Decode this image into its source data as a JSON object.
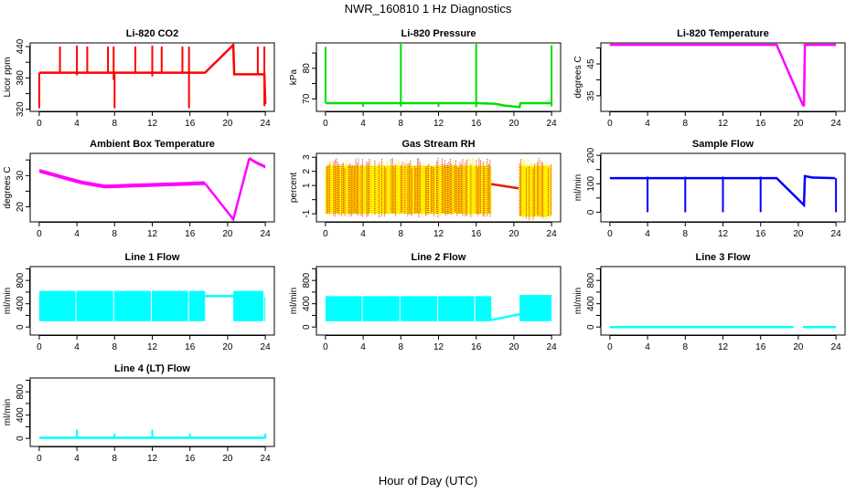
{
  "title": "NWR_160810  1 Hz Diagnostics",
  "xlabel": "Hour of Day (UTC)",
  "chart_data": [
    {
      "type": "line",
      "title": "Li-820 CO2",
      "ylabel": "Licor ppm",
      "color": "#ff0000",
      "xlim": [
        -0.96,
        24.96
      ],
      "ylim": [
        316,
        447
      ],
      "xticks": [
        0,
        4,
        8,
        12,
        16,
        20,
        24
      ],
      "yticks": [
        320,
        350,
        380,
        410,
        440
      ],
      "ytick_labels": [
        "320",
        "",
        "380",
        "",
        "440"
      ],
      "lines": [
        [
          [
            0,
            390
          ],
          [
            17.6,
            390
          ],
          [
            20.6,
            443
          ],
          [
            20.7,
            387
          ],
          [
            23.9,
            387
          ],
          [
            24,
            330
          ]
        ]
      ],
      "spikes": [
        [
          0,
          322,
          390
        ],
        [
          2.2,
          390,
          440
        ],
        [
          4,
          385,
          442
        ],
        [
          5.1,
          390,
          440
        ],
        [
          7.3,
          390,
          440
        ],
        [
          7.9,
          376,
          440
        ],
        [
          8,
          322,
          390
        ],
        [
          10.2,
          390,
          440
        ],
        [
          12,
          383,
          442
        ],
        [
          13,
          390,
          440
        ],
        [
          15.2,
          390,
          440
        ],
        [
          15.9,
          322,
          440
        ],
        [
          23.2,
          387,
          440
        ],
        [
          23.9,
          326,
          440
        ]
      ],
      "bands": []
    },
    {
      "type": "line",
      "title": "Li-820 Pressure",
      "ylabel": "kPa",
      "color": "#00dd00",
      "xlim": [
        -0.96,
        24.96
      ],
      "ylim": [
        65.9,
        88.3
      ],
      "xticks": [
        0,
        4,
        8,
        12,
        16,
        20,
        24
      ],
      "yticks": [
        70,
        75,
        80,
        85
      ],
      "ytick_labels": [
        "70",
        "",
        "80",
        ""
      ],
      "lines": [
        [
          [
            0,
            68.6
          ],
          [
            16,
            68.6
          ],
          [
            18,
            68.4
          ],
          [
            19,
            67.8
          ],
          [
            20.6,
            67.3
          ],
          [
            20.7,
            68.6
          ],
          [
            24,
            68.6
          ]
        ]
      ],
      "spikes": [
        [
          0,
          68.6,
          87
        ],
        [
          8,
          67.5,
          88.3
        ],
        [
          16,
          67.3,
          88.3
        ],
        [
          24,
          67.5,
          87.5
        ],
        [
          4,
          67.4,
          68.6
        ],
        [
          12,
          67.4,
          68.6
        ]
      ],
      "bands": []
    },
    {
      "type": "line",
      "title": "Li-820 Temperature",
      "ylabel": "degrees C",
      "color": "#ff00ff",
      "xlim": [
        -0.96,
        24.96
      ],
      "ylim": [
        30.1,
        51.6
      ],
      "xticks": [
        0,
        4,
        8,
        12,
        16,
        20,
        24
      ],
      "yticks": [
        35,
        40,
        45,
        50
      ],
      "ytick_labels": [
        "35",
        "",
        "45",
        ""
      ],
      "lines": [
        [
          [
            0,
            51
          ],
          [
            17.7,
            51
          ],
          [
            20.5,
            32
          ],
          [
            20.6,
            32
          ],
          [
            20.7,
            51
          ],
          [
            24,
            51
          ]
        ]
      ],
      "spikes": [],
      "bands": []
    },
    {
      "type": "line",
      "title": "Ambient Box Temperature",
      "ylabel": "degrees C",
      "color": "#ff00ff",
      "xlim": [
        -0.96,
        24.96
      ],
      "ylim": [
        15.2,
        37.1
      ],
      "xticks": [
        0,
        4,
        8,
        12,
        16,
        20,
        24
      ],
      "yticks": [
        20,
        25,
        30,
        35
      ],
      "ytick_labels": [
        "20",
        "",
        "30",
        ""
      ],
      "lines": [
        [
          [
            17.6,
            27.5
          ],
          [
            20.6,
            16
          ],
          [
            22.3,
            35.5
          ]
        ]
      ],
      "spikes": [],
      "bands": [
        {
          "points": [
            [
              0,
              31.5
            ],
            [
              1.5,
              30.3
            ],
            [
              3,
              29
            ],
            [
              4.5,
              27.8
            ],
            [
              6,
              27
            ],
            [
              7,
              26.5
            ],
            [
              9,
              26.7
            ],
            [
              12,
              27
            ],
            [
              15,
              27.3
            ],
            [
              17.6,
              27.6
            ]
          ],
          "width": 1.2
        },
        {
          "points": [
            [
              22.3,
              35.5
            ],
            [
              23,
              34.2
            ],
            [
              24,
              32.8
            ]
          ],
          "width": 1.0
        }
      ]
    },
    {
      "type": "line",
      "title": "Gas Stream RH",
      "ylabel": "percent",
      "color": "#dd2200",
      "color2": "#ffee00",
      "xlim": [
        -0.96,
        24.96
      ],
      "ylim": [
        -1.57,
        3.27
      ],
      "xticks": [
        0,
        4,
        8,
        12,
        16,
        20,
        24
      ],
      "yticks": [
        -1,
        0,
        1,
        2,
        3
      ],
      "ytick_labels": [
        "-1",
        "",
        "1",
        "2",
        "3"
      ],
      "lines": [
        [
          [
            17.6,
            1.1
          ],
          [
            20.5,
            0.8
          ]
        ]
      ],
      "spikes": [],
      "noise": [
        {
          "x0": 0,
          "x1": 17.6,
          "lo": -1.0,
          "hi": 2.4
        },
        {
          "x0": 20.6,
          "x1": 24,
          "lo": -1.2,
          "hi": 2.4
        }
      ]
    },
    {
      "type": "line",
      "title": "Sample Flow",
      "ylabel": "ml/min",
      "color": "#0000ff",
      "xlim": [
        -0.96,
        24.96
      ],
      "ylim": [
        -34,
        207
      ],
      "xticks": [
        0,
        4,
        8,
        12,
        16,
        20,
        24
      ],
      "yticks": [
        0,
        50,
        100,
        150,
        200
      ],
      "ytick_labels": [
        "0",
        "",
        "100",
        "",
        "200"
      ],
      "lines": [
        [
          [
            0,
            120
          ],
          [
            17.7,
            120
          ],
          [
            20.6,
            25
          ],
          [
            20.7,
            127
          ],
          [
            21.5,
            122
          ],
          [
            23.9,
            120
          ]
        ]
      ],
      "spikes": [
        [
          4,
          0,
          125
        ],
        [
          8,
          0,
          125
        ],
        [
          12,
          0,
          125
        ],
        [
          16,
          0,
          125
        ],
        [
          24,
          0,
          120
        ]
      ],
      "bands": []
    },
    {
      "type": "line",
      "title": "Line 1 Flow",
      "ylabel": "ml/min",
      "color": "#00ffff",
      "xlim": [
        -0.96,
        24.96
      ],
      "ylim": [
        -138,
        1038
      ],
      "xticks": [
        0,
        4,
        8,
        12,
        16,
        20,
        24
      ],
      "yticks": [
        0,
        200,
        400,
        600,
        800,
        1000
      ],
      "ytick_labels": [
        "0",
        "",
        "400",
        "",
        "800",
        ""
      ],
      "lines": [
        [
          [
            17.6,
            530
          ],
          [
            20.6,
            530
          ]
        ]
      ],
      "spikes": [],
      "blocks": [
        {
          "x0": 0,
          "x1": 3.85,
          "lo": 100,
          "hi": 620
        },
        {
          "x0": 3.95,
          "x1": 7.85,
          "lo": 100,
          "hi": 620
        },
        {
          "x0": 7.95,
          "x1": 11.85,
          "lo": 100,
          "hi": 620
        },
        {
          "x0": 11.95,
          "x1": 15.8,
          "lo": 100,
          "hi": 620
        },
        {
          "x0": 15.9,
          "x1": 17.6,
          "lo": 100,
          "hi": 620
        },
        {
          "x0": 20.6,
          "x1": 23.8,
          "lo": 100,
          "hi": 620
        },
        {
          "x0": 23.9,
          "x1": 24,
          "lo": 100,
          "hi": 520
        }
      ]
    },
    {
      "type": "line",
      "title": "Line 2 Flow",
      "ylabel": "ml/min",
      "color": "#00ffff",
      "xlim": [
        -0.96,
        24.96
      ],
      "ylim": [
        -138,
        1038
      ],
      "xticks": [
        0,
        4,
        8,
        12,
        16,
        20,
        24
      ],
      "yticks": [
        0,
        200,
        400,
        600,
        800,
        1000
      ],
      "ytick_labels": [
        "0",
        "",
        "400",
        "",
        "800",
        ""
      ],
      "lines": [
        [
          [
            17.6,
            120
          ],
          [
            20.6,
            220
          ]
        ]
      ],
      "spikes": [],
      "blocks": [
        {
          "x0": 0,
          "x1": 3.85,
          "lo": 100,
          "hi": 530
        },
        {
          "x0": 3.95,
          "x1": 7.85,
          "lo": 100,
          "hi": 530
        },
        {
          "x0": 7.95,
          "x1": 11.85,
          "lo": 100,
          "hi": 530
        },
        {
          "x0": 11.95,
          "x1": 15.8,
          "lo": 100,
          "hi": 530
        },
        {
          "x0": 15.9,
          "x1": 17.6,
          "lo": 100,
          "hi": 530
        },
        {
          "x0": 20.6,
          "x1": 24,
          "lo": 100,
          "hi": 550
        }
      ]
    },
    {
      "type": "line",
      "title": "Line 3 Flow",
      "ylabel": "ml/min",
      "color": "#00ffff",
      "xlim": [
        -0.96,
        24.96
      ],
      "ylim": [
        -138,
        1038
      ],
      "xticks": [
        0,
        4,
        8,
        12,
        16,
        20,
        24
      ],
      "yticks": [
        0,
        200,
        400,
        600,
        800,
        1000
      ],
      "ytick_labels": [
        "0",
        "",
        "400",
        "",
        "800",
        ""
      ],
      "lines": [
        [
          [
            0,
            0
          ],
          [
            19.5,
            0
          ]
        ],
        [
          [
            20.5,
            0
          ],
          [
            24,
            0
          ]
        ]
      ],
      "spikes": [],
      "bands": []
    },
    {
      "type": "line",
      "title": "Line 4 (LT) Flow",
      "ylabel": "ml/min",
      "color": "#00ffff",
      "xlim": [
        -0.96,
        24.96
      ],
      "ylim": [
        -138,
        1038
      ],
      "xticks": [
        0,
        4,
        8,
        12,
        16,
        20,
        24
      ],
      "yticks": [
        0,
        200,
        400,
        600,
        800,
        1000
      ],
      "ytick_labels": [
        "0",
        "",
        "400",
        "",
        "800",
        ""
      ],
      "lines": [
        [
          [
            0,
            10
          ],
          [
            24,
            10
          ]
        ]
      ],
      "spikes": [
        [
          4,
          0,
          150
        ],
        [
          8,
          0,
          80
        ],
        [
          12,
          0,
          150
        ],
        [
          16,
          0,
          80
        ],
        [
          24,
          0,
          80
        ]
      ],
      "bands": []
    }
  ]
}
